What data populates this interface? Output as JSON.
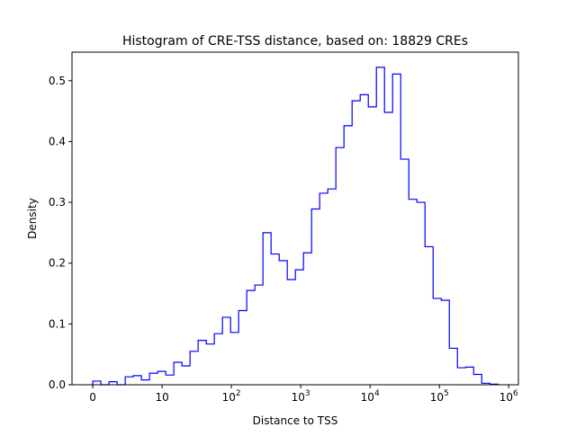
{
  "chart_data": {
    "type": "histogram",
    "title": "Histogram of CRE-TSS distance, based on: 18829 CREs",
    "xlabel": "Distance to TSS",
    "ylabel": "Density",
    "x_scale": "symlog (linear 0-10, log10 above)",
    "x_transformed_range": [
      -0.3,
      6.14
    ],
    "ylim": [
      0,
      0.547
    ],
    "bin_start_transformed": 0,
    "bin_width_transformed": 0.1169,
    "densities": [
      0.006,
      0,
      0.005,
      0,
      0.013,
      0.015,
      0.008,
      0.019,
      0.022,
      0.016,
      0.037,
      0.031,
      0.055,
      0.073,
      0.067,
      0.084,
      0.111,
      0.086,
      0.122,
      0.155,
      0.164,
      0.25,
      0.215,
      0.204,
      0.173,
      0.189,
      0.217,
      0.289,
      0.315,
      0.322,
      0.39,
      0.426,
      0.467,
      0.477,
      0.457,
      0.522,
      0.448,
      0.511,
      0.371,
      0.305,
      0.3,
      0.227,
      0.142,
      0.139,
      0.06,
      0.028,
      0.029,
      0.017,
      0.0025,
      0.001
    ],
    "line_color": "#0000ff",
    "x_ticks": [
      {
        "value": 0,
        "t": 0,
        "base": "0",
        "exp": ""
      },
      {
        "value": 10,
        "t": 1,
        "base": "10",
        "exp": ""
      },
      {
        "value": 100,
        "t": 2,
        "base": "10",
        "exp": "2"
      },
      {
        "value": 1000,
        "t": 3,
        "base": "10",
        "exp": "3"
      },
      {
        "value": 10000,
        "t": 4,
        "base": "10",
        "exp": "4"
      },
      {
        "value": 100000,
        "t": 5,
        "base": "10",
        "exp": "5"
      },
      {
        "value": 1000000,
        "t": 6,
        "base": "10",
        "exp": "6"
      }
    ],
    "y_ticks": [
      {
        "value": 0.0,
        "label": "0.0"
      },
      {
        "value": 0.1,
        "label": "0.1"
      },
      {
        "value": 0.2,
        "label": "0.2"
      },
      {
        "value": 0.3,
        "label": "0.3"
      },
      {
        "value": 0.4,
        "label": "0.4"
      },
      {
        "value": 0.5,
        "label": "0.5"
      }
    ]
  }
}
